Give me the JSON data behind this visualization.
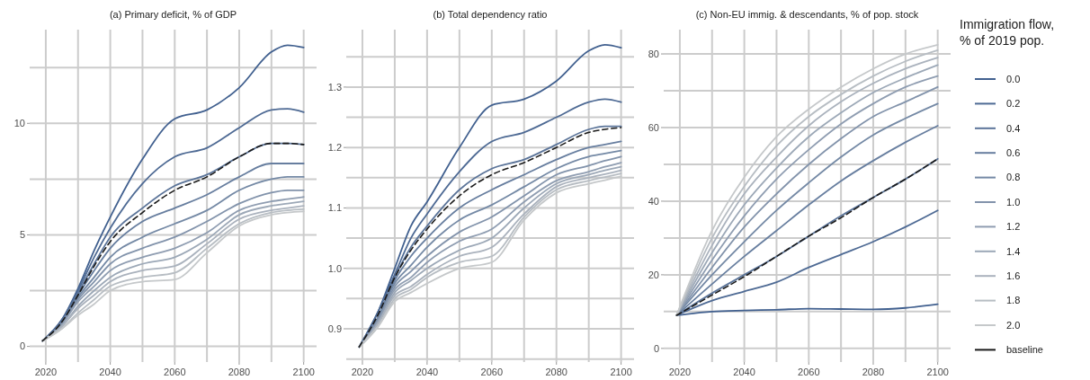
{
  "chart_data": [
    {
      "type": "line",
      "title": "(a) Primary deficit, % of GDP",
      "x": [
        2019,
        2025,
        2030,
        2035,
        2040,
        2050,
        2060,
        2070,
        2080,
        2090,
        2095,
        2100
      ],
      "xlim": [
        2015,
        2104
      ],
      "xticks": [
        2020,
        {
          "value": 2030,
          "label": null
        },
        2040,
        {
          "value": 2050,
          "label": null
        },
        2060,
        {
          "value": 2070,
          "label": null
        },
        2080,
        {
          "value": 2090,
          "label": null
        },
        2100
      ],
      "ylim": [
        -0.7,
        14.2
      ],
      "yticks": [
        0,
        {
          "value": 2.5,
          "label": null
        },
        5,
        {
          "value": 7.5,
          "label": null
        },
        10,
        {
          "value": 12.5,
          "label": null
        }
      ],
      "grid": true,
      "legend": false,
      "series": [
        {
          "color": "#41608f",
          "values": [
            0.25,
            1.2,
            2.6,
            4.3,
            5.8,
            8.4,
            10.2,
            10.6,
            11.6,
            13.2,
            13.5,
            13.4
          ]
        },
        {
          "color": "#4e6a94",
          "values": [
            0.25,
            1.2,
            2.5,
            4.0,
            5.3,
            7.3,
            8.5,
            8.9,
            9.8,
            10.6,
            10.65,
            10.5
          ]
        },
        {
          "color": "#5b7499",
          "values": [
            0.25,
            1.1,
            2.4,
            3.7,
            4.9,
            6.2,
            7.2,
            7.7,
            8.5,
            9.1,
            9.1,
            9.05
          ]
        },
        {
          "color": "#677e9f",
          "values": [
            0.25,
            1.1,
            2.3,
            3.4,
            4.4,
            5.6,
            6.2,
            6.8,
            7.6,
            8.2,
            8.2,
            8.2
          ]
        },
        {
          "color": "#7489a5",
          "values": [
            0.25,
            1.0,
            2.2,
            3.1,
            4.0,
            4.9,
            5.5,
            6.1,
            7.0,
            7.5,
            7.6,
            7.6
          ]
        },
        {
          "color": "#8293ab",
          "values": [
            0.25,
            1.0,
            2.1,
            2.9,
            3.7,
            4.4,
            4.9,
            5.6,
            6.4,
            6.9,
            7.0,
            7.0
          ]
        },
        {
          "color": "#8f9db1",
          "values": [
            0.25,
            1.0,
            2.0,
            2.7,
            3.4,
            4.0,
            4.4,
            5.1,
            6.1,
            6.5,
            6.6,
            6.7
          ]
        },
        {
          "color": "#9ca8b7",
          "values": [
            0.25,
            0.9,
            1.8,
            2.5,
            3.1,
            3.7,
            4.0,
            4.8,
            5.9,
            6.3,
            6.4,
            6.5
          ]
        },
        {
          "color": "#aab2bd",
          "values": [
            0.25,
            0.9,
            1.7,
            2.3,
            2.9,
            3.4,
            3.6,
            4.6,
            5.7,
            6.1,
            6.2,
            6.3
          ]
        },
        {
          "color": "#b7bdc3",
          "values": [
            0.25,
            0.8,
            1.5,
            2.1,
            2.7,
            3.1,
            3.3,
            4.4,
            5.5,
            6.0,
            6.1,
            6.15
          ]
        },
        {
          "color": "#c5c8ca",
          "values": [
            0.25,
            0.8,
            1.4,
            1.9,
            2.5,
            2.9,
            3.0,
            4.2,
            5.4,
            5.9,
            6.0,
            6.05
          ]
        },
        {
          "color": "#1a1a1a",
          "line_style": "dashed",
          "values": [
            0.25,
            1.1,
            2.3,
            3.6,
            4.7,
            6.0,
            7.0,
            7.6,
            8.5,
            9.1,
            9.1,
            9.05
          ]
        }
      ]
    },
    {
      "type": "line",
      "title": "(b) Total dependency ratio",
      "x": [
        2019,
        2025,
        2030,
        2035,
        2040,
        2050,
        2060,
        2070,
        2080,
        2090,
        2095,
        2100
      ],
      "xlim": [
        2015,
        2104
      ],
      "xticks": [
        2020,
        {
          "value": 2030,
          "label": null
        },
        2040,
        {
          "value": 2050,
          "label": null
        },
        2060,
        {
          "value": 2070,
          "label": null
        },
        2080,
        {
          "value": 2090,
          "label": null
        },
        2100
      ],
      "ylim": [
        0.845,
        1.395
      ],
      "yticks": [
        {
          "value": 0.85,
          "label": null
        },
        {
          "value": 0.9,
          "label": "0.9"
        },
        {
          "value": 0.95,
          "label": null
        },
        {
          "value": 1.0,
          "label": "1.0"
        },
        {
          "value": 1.05,
          "label": null
        },
        {
          "value": 1.1,
          "label": "1.1"
        },
        {
          "value": 1.15,
          "label": null
        },
        {
          "value": 1.2,
          "label": "1.2"
        },
        {
          "value": 1.25,
          "label": null
        },
        {
          "value": 1.3,
          "label": "1.3"
        },
        {
          "value": 1.35,
          "label": null
        }
      ],
      "grid": true,
      "legend": false,
      "series": [
        {
          "color": "#41608f",
          "values": [
            0.87,
            0.93,
            1.0,
            1.07,
            1.11,
            1.2,
            1.27,
            1.28,
            1.31,
            1.36,
            1.37,
            1.365
          ]
        },
        {
          "color": "#4e6a94",
          "values": [
            0.87,
            0.93,
            0.99,
            1.05,
            1.09,
            1.16,
            1.21,
            1.225,
            1.25,
            1.275,
            1.28,
            1.275
          ]
        },
        {
          "color": "#5b7499",
          "values": [
            0.87,
            0.92,
            0.985,
            1.035,
            1.07,
            1.13,
            1.165,
            1.18,
            1.205,
            1.23,
            1.235,
            1.235
          ]
        },
        {
          "color": "#677e9f",
          "values": [
            0.87,
            0.92,
            0.98,
            1.02,
            1.05,
            1.1,
            1.13,
            1.155,
            1.18,
            1.2,
            1.205,
            1.21
          ]
        },
        {
          "color": "#7489a5",
          "values": [
            0.87,
            0.92,
            0.975,
            1.005,
            1.035,
            1.08,
            1.105,
            1.135,
            1.165,
            1.185,
            1.19,
            1.195
          ]
        },
        {
          "color": "#8293ab",
          "values": [
            0.87,
            0.915,
            0.97,
            0.995,
            1.02,
            1.06,
            1.085,
            1.12,
            1.155,
            1.17,
            1.178,
            1.185
          ]
        },
        {
          "color": "#8f9db1",
          "values": [
            0.87,
            0.915,
            0.965,
            0.985,
            1.01,
            1.045,
            1.065,
            1.11,
            1.145,
            1.16,
            1.168,
            1.175
          ]
        },
        {
          "color": "#9ca8b7",
          "values": [
            0.87,
            0.91,
            0.96,
            0.98,
            1.0,
            1.03,
            1.05,
            1.1,
            1.14,
            1.155,
            1.162,
            1.168
          ]
        },
        {
          "color": "#aab2bd",
          "values": [
            0.87,
            0.91,
            0.955,
            0.97,
            0.99,
            1.02,
            1.035,
            1.09,
            1.135,
            1.15,
            1.156,
            1.162
          ]
        },
        {
          "color": "#b7bdc3",
          "values": [
            0.87,
            0.905,
            0.95,
            0.965,
            0.985,
            1.01,
            1.02,
            1.085,
            1.13,
            1.145,
            1.151,
            1.157
          ]
        },
        {
          "color": "#c5c8ca",
          "values": [
            0.87,
            0.905,
            0.945,
            0.96,
            0.975,
            1.0,
            1.01,
            1.08,
            1.125,
            1.14,
            1.146,
            1.152
          ]
        },
        {
          "color": "#1a1a1a",
          "line_style": "dashed",
          "values": [
            0.87,
            0.925,
            0.985,
            1.03,
            1.065,
            1.12,
            1.155,
            1.175,
            1.2,
            1.225,
            1.23,
            1.233
          ]
        }
      ]
    },
    {
      "type": "line",
      "title": "(c) Non-EU immig. & descendants, % of pop. stock",
      "legend_title": "Immigration flow, % of 2019 pop.",
      "x": [
        2019,
        2030,
        2040,
        2050,
        2060,
        2070,
        2080,
        2090,
        2100
      ],
      "xlim": [
        2015,
        2104
      ],
      "xticks": [
        2020,
        {
          "value": 2030,
          "label": null
        },
        2040,
        {
          "value": 2050,
          "label": null
        },
        2060,
        {
          "value": 2070,
          "label": null
        },
        2080,
        {
          "value": 2090,
          "label": null
        },
        2100
      ],
      "ylim": [
        -3.7,
        86.6
      ],
      "yticks": [
        0,
        {
          "value": 10,
          "label": null
        },
        20,
        {
          "value": 30,
          "label": null
        },
        40,
        {
          "value": 50,
          "label": null
        },
        60,
        {
          "value": 70,
          "label": null
        },
        80
      ],
      "grid": true,
      "legend": "right",
      "series": [
        {
          "name": "0.0",
          "color": "#41608f",
          "values": [
            9,
            10,
            10.3,
            10.5,
            10.8,
            10.7,
            10.6,
            11,
            12
          ]
        },
        {
          "name": "0.2",
          "color": "#4e6a94",
          "values": [
            9,
            13,
            15.5,
            18,
            22,
            25.5,
            29,
            33,
            37.5
          ]
        },
        {
          "name": "0.4",
          "color": "#5b7499",
          "values": [
            9,
            15,
            20,
            25,
            30.5,
            36,
            41,
            46,
            51.5
          ]
        },
        {
          "name": "0.6",
          "color": "#677e9f",
          "values": [
            9,
            17.5,
            25,
            32,
            39,
            45.5,
            51,
            56,
            60.5
          ]
        },
        {
          "name": "0.8",
          "color": "#7489a5",
          "values": [
            9,
            20,
            29,
            37.5,
            45,
            52,
            58,
            62.5,
            66.5
          ]
        },
        {
          "name": "1.0",
          "color": "#8293ab",
          "values": [
            9,
            22,
            33,
            42,
            50,
            57,
            63,
            67,
            71
          ]
        },
        {
          "name": "1.2",
          "color": "#8f9db1",
          "values": [
            9,
            24,
            36,
            46,
            54,
            61,
            66.5,
            71,
            74
          ]
        },
        {
          "name": "1.4",
          "color": "#9ca8b7",
          "values": [
            9,
            26,
            39,
            49,
            57.5,
            64,
            69.5,
            73.5,
            77
          ]
        },
        {
          "name": "1.6",
          "color": "#aab2bd",
          "values": [
            9,
            28,
            42,
            52,
            60.5,
            67,
            72,
            76,
            79
          ]
        },
        {
          "name": "1.8",
          "color": "#b7bdc3",
          "values": [
            9,
            30,
            44,
            55,
            63,
            69,
            74,
            78,
            81
          ]
        },
        {
          "name": "2.0",
          "color": "#c5c8ca",
          "values": [
            9,
            32,
            46.5,
            57.5,
            65,
            71,
            76,
            80,
            82.5
          ]
        },
        {
          "name": "baseline",
          "color": "#1a1a1a",
          "line_style": "dashed",
          "values": [
            9,
            14.5,
            19.5,
            25,
            30.5,
            35.5,
            41,
            46,
            51.5
          ]
        }
      ]
    }
  ]
}
